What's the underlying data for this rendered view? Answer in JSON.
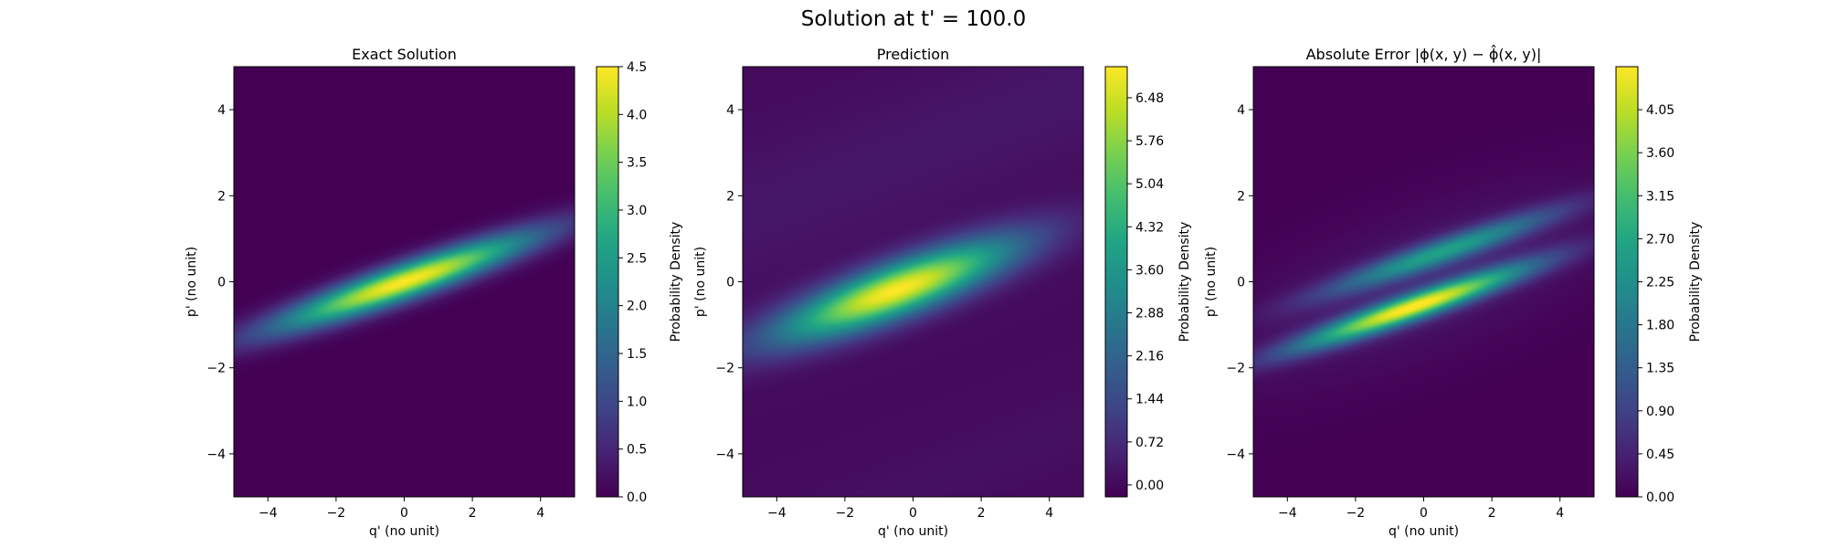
{
  "figure": {
    "title": "Solution at t' = 100.0"
  },
  "chart_data": [
    {
      "type": "heatmap",
      "title": "Exact Solution",
      "xlabel": "q' (no unit)",
      "ylabel": "p' (no unit)",
      "xlim": [
        -5,
        5
      ],
      "ylim": [
        -5,
        5
      ],
      "x_ticks": [
        -4,
        -2,
        0,
        2,
        4
      ],
      "y_ticks": [
        -4,
        -2,
        0,
        2,
        4
      ],
      "x_tick_labels": [
        "−4",
        "−2",
        "0",
        "2",
        "4"
      ],
      "y_tick_labels": [
        "−4",
        "−2",
        "0",
        "2",
        "4"
      ],
      "colormap": "viridis",
      "colorbar": {
        "label": "Probability Density",
        "range": [
          0.0,
          4.5
        ],
        "ticks": [
          0.0,
          0.5,
          1.0,
          1.5,
          2.0,
          2.5,
          3.0,
          3.5,
          4.0,
          4.5
        ],
        "tick_labels": [
          "0.0",
          "0.5",
          "1.0",
          "1.5",
          "2.0",
          "2.5",
          "3.0",
          "3.5",
          "4.0",
          "4.5"
        ]
      },
      "peak": {
        "q": 0.0,
        "p": 0.0,
        "value": 4.5
      },
      "ridge_slope": 0.27
    },
    {
      "type": "heatmap",
      "title": "Prediction",
      "xlabel": "q' (no unit)",
      "ylabel": "p' (no unit)",
      "xlim": [
        -5,
        5
      ],
      "ylim": [
        -5,
        5
      ],
      "x_ticks": [
        -4,
        -2,
        0,
        2,
        4
      ],
      "y_ticks": [
        -4,
        -2,
        0,
        2,
        4
      ],
      "x_tick_labels": [
        "−4",
        "−2",
        "0",
        "2",
        "4"
      ],
      "y_tick_labels": [
        "−4",
        "−2",
        "0",
        "2",
        "4"
      ],
      "colormap": "viridis",
      "colorbar": {
        "label": "Probability Density",
        "range": [
          -0.2,
          7.0
        ],
        "ticks": [
          0.0,
          0.72,
          1.44,
          2.16,
          2.88,
          3.6,
          4.32,
          5.04,
          5.76,
          6.48
        ],
        "tick_labels": [
          "0.00",
          "0.72",
          "1.44",
          "2.16",
          "2.88",
          "3.60",
          "4.32",
          "5.04",
          "5.76",
          "6.48"
        ]
      },
      "peak": {
        "q": -0.5,
        "p": -0.2,
        "value": 7.0
      },
      "ridge_slope": 0.28
    },
    {
      "type": "heatmap",
      "title": "Absolute Error",
      "title_math": "|ϕ(x, y) − ϕ̂(x, y)|",
      "xlabel": "q' (no unit)",
      "ylabel": "p' (no unit)",
      "xlim": [
        -5,
        5
      ],
      "ylim": [
        -5,
        5
      ],
      "x_ticks": [
        -4,
        -2,
        0,
        2,
        4
      ],
      "y_ticks": [
        -4,
        -2,
        0,
        2,
        4
      ],
      "x_tick_labels": [
        "−4",
        "−2",
        "0",
        "2",
        "4"
      ],
      "y_tick_labels": [
        "−4",
        "−2",
        "0",
        "2",
        "4"
      ],
      "colormap": "viridis",
      "colorbar": {
        "label": "Probability Density",
        "range": [
          0.0,
          4.5
        ],
        "ticks": [
          0.0,
          0.45,
          0.9,
          1.35,
          1.8,
          2.25,
          2.7,
          3.15,
          3.6,
          4.05
        ],
        "tick_labels": [
          "0.00",
          "0.45",
          "0.90",
          "1.35",
          "1.80",
          "2.25",
          "2.70",
          "3.15",
          "3.60",
          "4.05"
        ]
      },
      "bands": [
        {
          "name": "upper",
          "p_offset": 0.55,
          "value": 2.3
        },
        {
          "name": "lower",
          "p_offset": -0.5,
          "value": 4.3
        }
      ],
      "ridge_slope": 0.27
    }
  ]
}
